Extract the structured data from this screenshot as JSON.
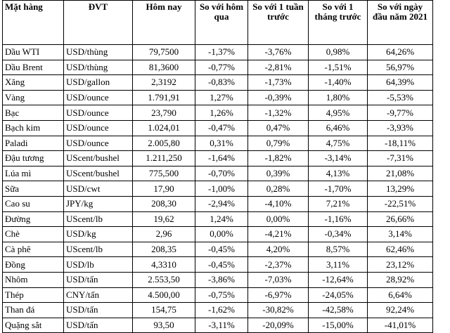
{
  "table": {
    "headers": [
      "Mặt hàng",
      "ĐVT",
      "Hôm nay",
      "So với hôm qua",
      "So với 1 tuần trước",
      "So với 1 tháng trước",
      "So với ngày đầu năm 2021"
    ],
    "rows": [
      [
        "Dầu WTI",
        "USD/thùng",
        "79,7500",
        "-1,37%",
        "-3,76%",
        "0,98%",
        "64,26%"
      ],
      [
        "Dầu Brent",
        "USD/thùng",
        "81,3600",
        "-0,77%",
        "-2,81%",
        "-1,51%",
        "56,97%"
      ],
      [
        "Xăng",
        "USD/gallon",
        "2,3192",
        "-0,83%",
        "-1,73%",
        "-1,40%",
        "64,39%"
      ],
      [
        "Vàng",
        "USD/ounce",
        "1.791,91",
        "1,27%",
        "-0,39%",
        "1,80%",
        "-5,53%"
      ],
      [
        "Bạc",
        "USD/ounce",
        "23,790",
        "1,26%",
        "-1,32%",
        "4,95%",
        "-9,77%"
      ],
      [
        "Bạch kim",
        "USD/ounce",
        "1.024,01",
        "-0,47%",
        "0,47%",
        "6,46%",
        "-3,93%"
      ],
      [
        "Paladi",
        "USD/ounce",
        "2.005,80",
        "0,31%",
        "0,79%",
        "4,75%",
        "-18,11%"
      ],
      [
        "Đậu tương",
        "UScent/bushel",
        "1.211,250",
        "-1,64%",
        "-1,82%",
        "-3,14%",
        "-7,31%"
      ],
      [
        "Lúa mì",
        "UScent/bushel",
        "775,500",
        "-0,70%",
        "0,39%",
        "4,13%",
        "21,08%"
      ],
      [
        "Sữa",
        "USD/cwt",
        "17,90",
        "-1,00%",
        "0,28%",
        "-1,70%",
        "13,29%"
      ],
      [
        "Cao su",
        "JPY/kg",
        "208,30",
        "-2,94%",
        "-4,10%",
        "7,21%",
        "-22,51%"
      ],
      [
        "Đường",
        "UScent/lb",
        "19,62",
        "1,24%",
        "0,00%",
        "-1,16%",
        "26,66%"
      ],
      [
        "Chè",
        "USD/kg",
        "2,96",
        "0,00%",
        "-4,21%",
        "-0,34%",
        "3,14%"
      ],
      [
        "Cà phê",
        "UScent/lb",
        "208,35",
        "-0,45%",
        "4,20%",
        "8,57%",
        "62,46%"
      ],
      [
        "Đồng",
        "USD/lb",
        "4,3310",
        "-0,45%",
        "-2,37%",
        "3,11%",
        "23,12%"
      ],
      [
        "Nhôm",
        "USD/tấn",
        "2.553,50",
        "-3,86%",
        "-7,03%",
        "-12,64%",
        "28,92%"
      ],
      [
        "Thép",
        "CNY/tấn",
        "4.500,00",
        "-0,75%",
        "-6,97%",
        "-24,05%",
        "6,64%"
      ],
      [
        "Than đá",
        "USD/tấn",
        "154,75",
        "-1,62%",
        "-30,82%",
        "-42,58%",
        "92,24%"
      ],
      [
        "Quặng sắt",
        "USD/tấn",
        "93,50",
        "-3,11%",
        "-20,09%",
        "-15,00%",
        "-41,01%"
      ]
    ]
  }
}
